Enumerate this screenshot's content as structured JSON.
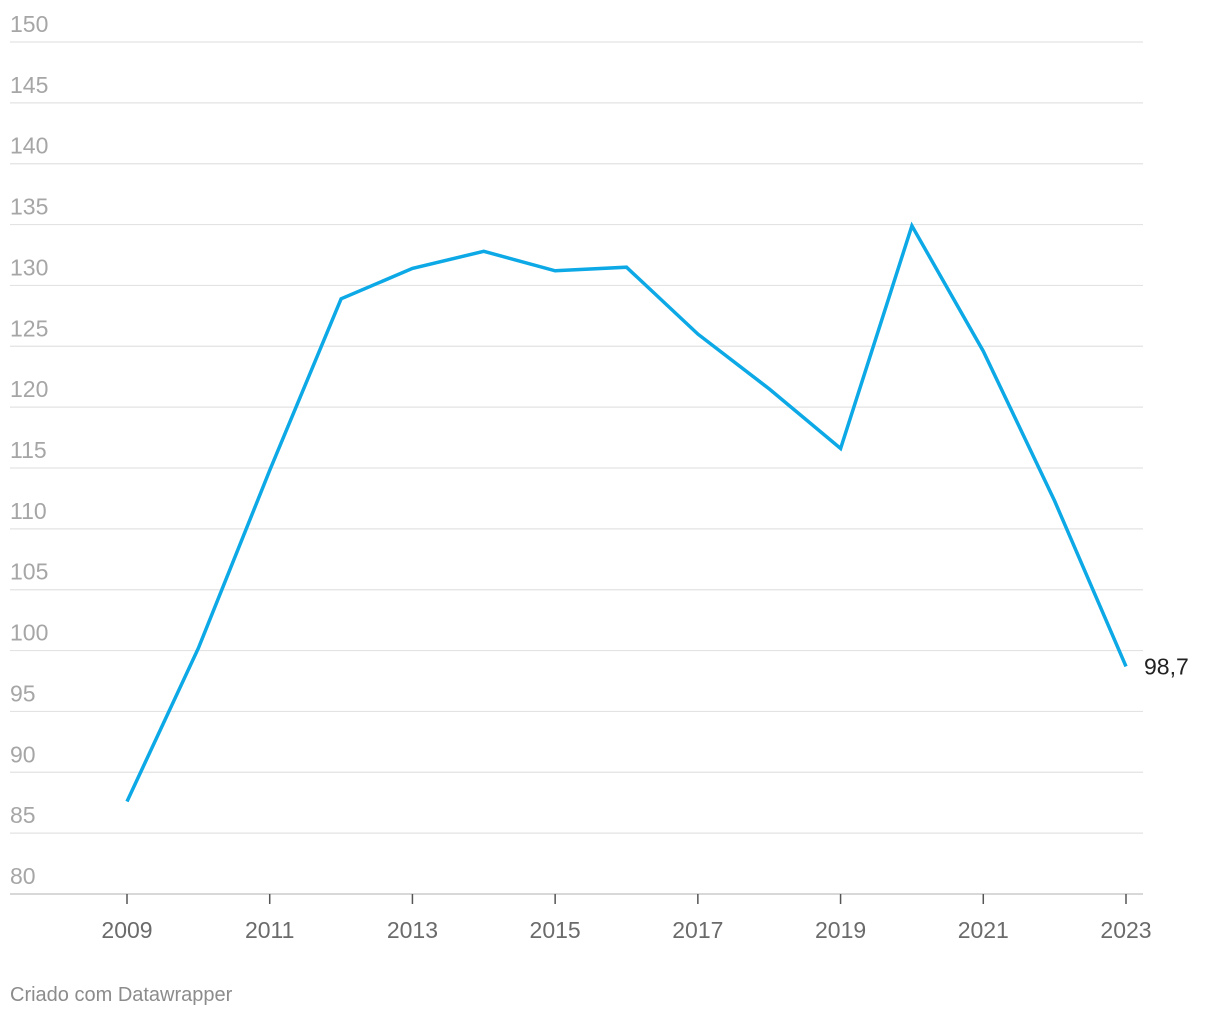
{
  "chart_data": {
    "type": "line",
    "x": [
      2009,
      2010,
      2011,
      2012,
      2013,
      2014,
      2015,
      2016,
      2017,
      2018,
      2019,
      2020,
      2021,
      2022,
      2023
    ],
    "series": [
      {
        "values": [
          87.6,
          100.2,
          114.8,
          128.9,
          131.4,
          132.8,
          131.2,
          131.5,
          126.0,
          121.5,
          116.6,
          134.9,
          124.6,
          112.3,
          98.7
        ],
        "color": "#0ca9e6"
      }
    ],
    "end_label": "98,7",
    "xticks": [
      "2009",
      "2011",
      "2013",
      "2015",
      "2017",
      "2019",
      "2021",
      "2023"
    ],
    "yticks": [
      "150",
      "145",
      "140",
      "135",
      "130",
      "125",
      "120",
      "115",
      "110",
      "105",
      "100",
      "95",
      "90",
      "85",
      "80"
    ],
    "ylim": [
      80,
      150
    ],
    "xlim": [
      2009,
      2023
    ],
    "grid": true,
    "title": "",
    "xlabel": "",
    "ylabel": ""
  },
  "footer": {
    "credit": "Criado com Datawrapper"
  },
  "colors": {
    "line": "#0ca9e6",
    "grid": "#e3e3e3",
    "axis": "#cccccc",
    "ytick": "#a6a6a6",
    "xtick": "#6b6b6b"
  }
}
